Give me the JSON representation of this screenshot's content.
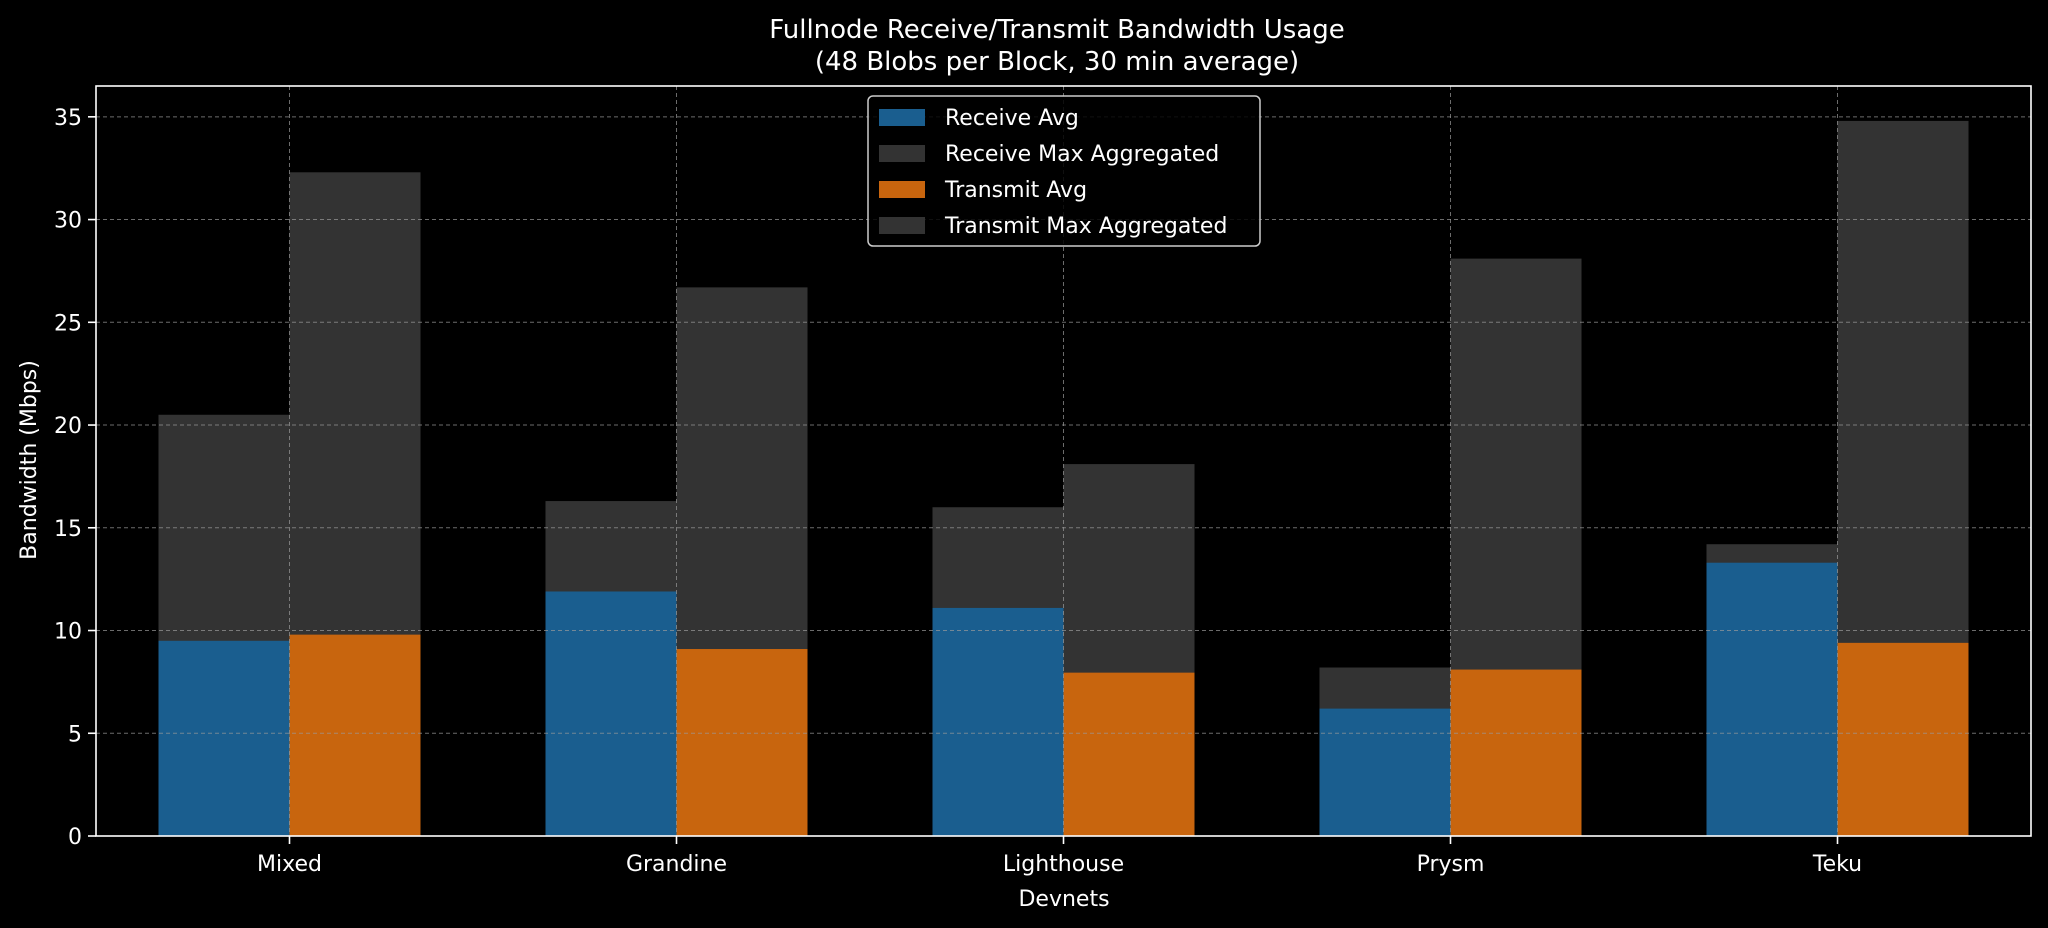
{
  "chart_data": {
    "type": "bar",
    "title": "Fullnode Receive/Transmit Bandwidth Usage",
    "subtitle": "(48 Blobs per Block, 30 min average)",
    "xlabel": "Devnets",
    "ylabel": "Bandwidth (Mbps)",
    "categories": [
      "Mixed",
      "Grandine",
      "Lighthouse",
      "Prysm",
      "Teku"
    ],
    "ylim": [
      0,
      36.5
    ],
    "yticks": [
      0,
      5,
      10,
      15,
      20,
      25,
      30,
      35
    ],
    "grid": true,
    "legend_position": "top-center",
    "series": [
      {
        "name": "Receive Avg",
        "values": [
          9.5,
          11.9,
          11.1,
          6.2,
          13.3
        ],
        "color": "#1a5e8f",
        "group": "receive"
      },
      {
        "name": "Receive Max Aggregated",
        "values": [
          20.5,
          16.3,
          16.0,
          8.2,
          14.2
        ],
        "color": "#333333",
        "group": "receive"
      },
      {
        "name": "Transmit Avg",
        "values": [
          9.8,
          9.1,
          7.95,
          8.1,
          9.4
        ],
        "color": "#c8650e",
        "group": "transmit"
      },
      {
        "name": "Transmit Max Aggregated",
        "values": [
          32.3,
          26.7,
          18.1,
          28.1,
          34.8
        ],
        "color": "#333333",
        "group": "transmit"
      }
    ]
  }
}
